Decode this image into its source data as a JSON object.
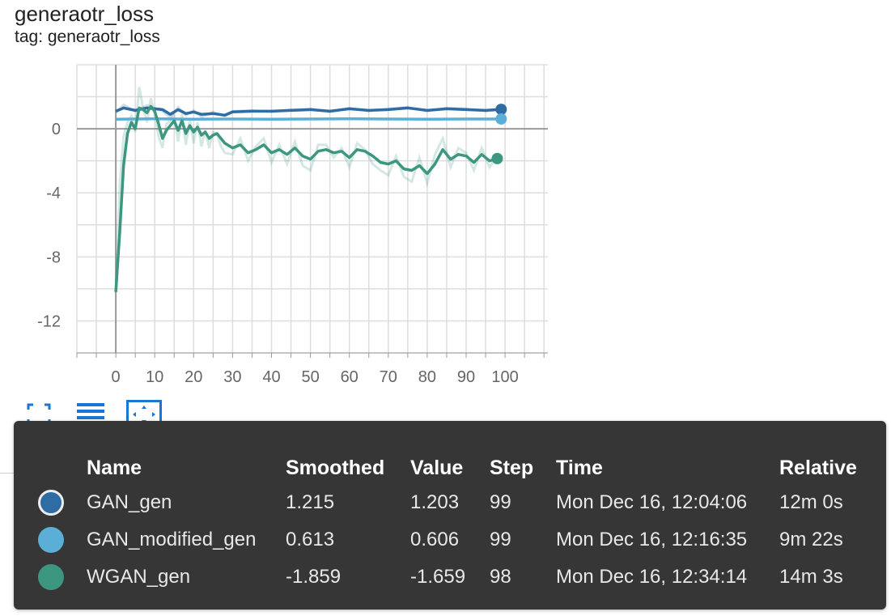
{
  "card": {
    "title": "generaotr_loss",
    "tag": "tag: generaotr_loss"
  },
  "toolbar": {
    "icons": [
      "expand-icon",
      "list-icon",
      "fit-domain-icon"
    ],
    "active_color": "#1976d2"
  },
  "chart_data": {
    "type": "line",
    "title": "generaotr_loss",
    "xlim": [
      -10,
      111
    ],
    "ylim": [
      -14,
      4
    ],
    "x_ticks": [
      0,
      10,
      20,
      30,
      40,
      50,
      60,
      70,
      80,
      90,
      100
    ],
    "y_ticks": [
      0,
      -4,
      -8,
      -12
    ],
    "grid": true,
    "series": [
      {
        "name": "GAN_gen",
        "color": "#2f6ca4",
        "x": [
          0,
          2,
          5,
          8,
          10,
          12,
          14,
          16,
          18,
          20,
          22,
          25,
          28,
          30,
          35,
          40,
          45,
          50,
          55,
          60,
          65,
          70,
          75,
          80,
          85,
          90,
          95,
          99
        ],
        "smoothed": [
          1.1,
          1.3,
          1.15,
          1.3,
          1.25,
          1.2,
          0.9,
          1.2,
          0.95,
          1.05,
          0.9,
          0.95,
          0.85,
          1.05,
          1.1,
          1.1,
          1.15,
          1.2,
          1.1,
          1.25,
          1.15,
          1.2,
          1.3,
          1.15,
          1.25,
          1.2,
          1.15,
          1.215
        ],
        "raw": [
          1.0,
          1.5,
          1.1,
          1.45,
          1.3,
          1.1,
          0.7,
          1.35,
          0.85,
          1.15,
          0.75,
          1.05,
          0.8,
          1.1,
          1.15,
          1.05,
          1.2,
          1.25,
          1.05,
          1.3,
          1.1,
          1.25,
          1.35,
          1.1,
          1.3,
          1.25,
          1.1,
          1.203
        ]
      },
      {
        "name": "GAN_modified_gen",
        "color": "#5bafd6",
        "x": [
          0,
          10,
          20,
          30,
          40,
          50,
          60,
          70,
          80,
          90,
          99
        ],
        "smoothed": [
          0.6,
          0.62,
          0.6,
          0.61,
          0.6,
          0.61,
          0.62,
          0.61,
          0.6,
          0.61,
          0.613
        ],
        "raw": [
          0.6,
          0.63,
          0.59,
          0.62,
          0.6,
          0.61,
          0.62,
          0.6,
          0.61,
          0.6,
          0.606
        ]
      },
      {
        "name": "WGAN_gen",
        "color": "#3d9680",
        "x": [
          0,
          1,
          2,
          3,
          4,
          5,
          6,
          7,
          8,
          9,
          10,
          11,
          12,
          13,
          14,
          15,
          16,
          17,
          18,
          19,
          20,
          21,
          22,
          23,
          24,
          25,
          26,
          27,
          28,
          30,
          32,
          34,
          36,
          38,
          40,
          42,
          44,
          46,
          48,
          50,
          52,
          54,
          56,
          58,
          60,
          62,
          64,
          66,
          68,
          70,
          72,
          74,
          76,
          78,
          80,
          82,
          84,
          86,
          88,
          90,
          92,
          94,
          96,
          98
        ],
        "smoothed": [
          -10.2,
          -6.5,
          -2.3,
          -0.3,
          0.4,
          0.0,
          1.3,
          1.2,
          1.0,
          1.4,
          1.1,
          0.3,
          -0.6,
          -0.1,
          0.2,
          0.5,
          -0.1,
          0.5,
          -0.3,
          0.2,
          -0.2,
          0.1,
          -0.4,
          -0.2,
          -0.6,
          -0.4,
          -0.3,
          -0.6,
          -0.9,
          -1.2,
          -1.0,
          -1.5,
          -1.3,
          -1.0,
          -1.5,
          -1.3,
          -1.6,
          -1.2,
          -1.7,
          -1.9,
          -1.4,
          -1.3,
          -1.5,
          -1.4,
          -1.8,
          -1.3,
          -1.4,
          -1.7,
          -2.1,
          -2.2,
          -2.0,
          -2.5,
          -2.6,
          -2.3,
          -2.8,
          -2.2,
          -1.3,
          -1.9,
          -1.6,
          -1.7,
          -2.1,
          -1.6,
          -2.0,
          -1.859
        ],
        "raw": [
          -10.2,
          -3.5,
          -0.5,
          0.4,
          0.8,
          -0.2,
          2.6,
          1.3,
          0.4,
          1.9,
          0.9,
          -0.5,
          -1.2,
          0.3,
          0.5,
          0.9,
          -0.8,
          0.9,
          -1.0,
          0.6,
          -0.9,
          0.4,
          -1.1,
          -0.1,
          -1.2,
          -0.2,
          -0.3,
          -1.1,
          -1.5,
          -1.6,
          -0.6,
          -2.0,
          -1.1,
          -0.6,
          -2.1,
          -1.0,
          -2.2,
          -0.8,
          -2.3,
          -2.6,
          -1.0,
          -1.0,
          -1.8,
          -1.2,
          -2.4,
          -0.9,
          -1.3,
          -2.2,
          -2.6,
          -2.9,
          -1.7,
          -3.0,
          -3.3,
          -1.8,
          -3.4,
          -1.6,
          -0.6,
          -2.4,
          -1.2,
          -1.5,
          -2.6,
          -1.2,
          -2.4,
          -1.659
        ]
      }
    ]
  },
  "tooltip": {
    "headers": {
      "name": "Name",
      "smoothed": "Smoothed",
      "value": "Value",
      "step": "Step",
      "time": "Time",
      "relative": "Relative"
    },
    "rows": [
      {
        "name": "GAN_gen",
        "color": "#2f6ca4",
        "smoothed": "1.215",
        "value": "1.203",
        "step": "99",
        "time": "Mon Dec 16, 12:04:06",
        "relative": "12m 0s"
      },
      {
        "name": "GAN_modified_gen",
        "color": "#5bafd6",
        "smoothed": "0.613",
        "value": "0.606",
        "step": "99",
        "time": "Mon Dec 16, 12:16:35",
        "relative": "9m 22s"
      },
      {
        "name": "WGAN_gen",
        "color": "#3d9680",
        "smoothed": "-1.859",
        "value": "-1.659",
        "step": "98",
        "time": "Mon Dec 16, 12:34:14",
        "relative": "14m 3s"
      }
    ]
  }
}
